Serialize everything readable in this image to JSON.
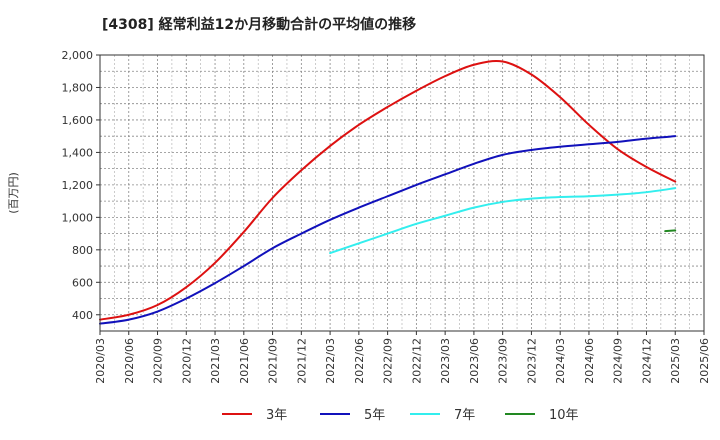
{
  "chart_data": {
    "type": "line",
    "title": "[4308]  経常利益12か月移動合計の平均値の推移",
    "ylabel": "(百万円)",
    "xlabel": "",
    "ylim": [
      300,
      2000
    ],
    "yticks": [
      400,
      600,
      800,
      1000,
      1200,
      1400,
      1600,
      1800,
      2000
    ],
    "ytick_labels": [
      "400",
      "600",
      "800",
      "1,000",
      "1,200",
      "1,400",
      "1,600",
      "1,800",
      "2,000"
    ],
    "x_categories": [
      "2020/03",
      "2020/06",
      "2020/09",
      "2020/12",
      "2021/03",
      "2021/06",
      "2021/09",
      "2021/12",
      "2022/03",
      "2022/06",
      "2022/09",
      "2022/12",
      "2023/03",
      "2023/06",
      "2023/09",
      "2023/12",
      "2024/03",
      "2024/06",
      "2024/09",
      "2024/12",
      "2025/03",
      "2025/06"
    ],
    "grid": true,
    "legend_position": "bottom",
    "series": [
      {
        "name": "3年",
        "color": "#dd1111",
        "values": [
          370,
          400,
          460,
          570,
          720,
          910,
          1120,
          1290,
          1440,
          1570,
          1680,
          1780,
          1870,
          1940,
          1960,
          1880,
          1740,
          1570,
          1420,
          1310,
          1220,
          null
        ]
      },
      {
        "name": "5年",
        "color": "#1111bb",
        "values": [
          345,
          370,
          420,
          500,
          595,
          700,
          810,
          900,
          985,
          1060,
          1130,
          1200,
          1265,
          1330,
          1385,
          1415,
          1435,
          1450,
          1465,
          1485,
          1500,
          null
        ]
      },
      {
        "name": "7年",
        "color": "#33eeee",
        "values": [
          null,
          null,
          null,
          null,
          null,
          null,
          null,
          null,
          780,
          840,
          900,
          960,
          1010,
          1060,
          1095,
          1115,
          1125,
          1130,
          1140,
          1155,
          1180,
          null
        ]
      },
      {
        "name": "10年",
        "color": "#228822",
        "values": [
          null,
          null,
          null,
          null,
          null,
          null,
          null,
          null,
          null,
          null,
          null,
          null,
          null,
          null,
          null,
          null,
          null,
          null,
          null,
          null,
          920,
          null
        ],
        "segment_start": 915
      }
    ]
  }
}
